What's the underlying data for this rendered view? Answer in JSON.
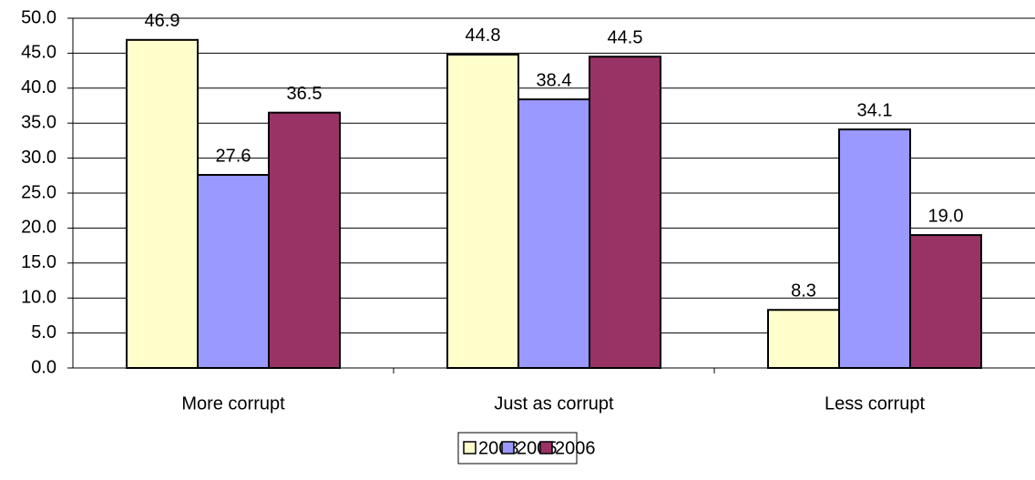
{
  "chart_data": {
    "type": "bar",
    "categories": [
      "More corrupt",
      "Just as corrupt",
      "Less corrupt"
    ],
    "series": [
      {
        "name": "2003",
        "color": "#ffffcc",
        "values": [
          46.9,
          44.8,
          8.3
        ],
        "value_labels": [
          "46.9",
          "44.8",
          "8.3"
        ]
      },
      {
        "name": "2005",
        "color": "#9999ff",
        "values": [
          27.6,
          38.4,
          34.1
        ],
        "value_labels": [
          "27.6",
          "38.4",
          "34.1"
        ]
      },
      {
        "name": "2006",
        "color": "#993366",
        "values": [
          36.5,
          44.5,
          19.0
        ],
        "value_labels": [
          "36.5",
          "44.5",
          "19.0"
        ]
      }
    ],
    "ylim": [
      0,
      50
    ],
    "yticks": [
      {
        "value": 0,
        "label": "0.0"
      },
      {
        "value": 5,
        "label": "5.0"
      },
      {
        "value": 10,
        "label": "10.0"
      },
      {
        "value": 15,
        "label": "15.0"
      },
      {
        "value": 20,
        "label": "20.0"
      },
      {
        "value": 25,
        "label": "25.0"
      },
      {
        "value": 30,
        "label": "30.0"
      },
      {
        "value": 35,
        "label": "35.0"
      },
      {
        "value": 40,
        "label": "40.0"
      },
      {
        "value": 45,
        "label": "45.0"
      },
      {
        "value": 50,
        "label": "50.0"
      }
    ],
    "grid": true,
    "legend": "bottom"
  }
}
